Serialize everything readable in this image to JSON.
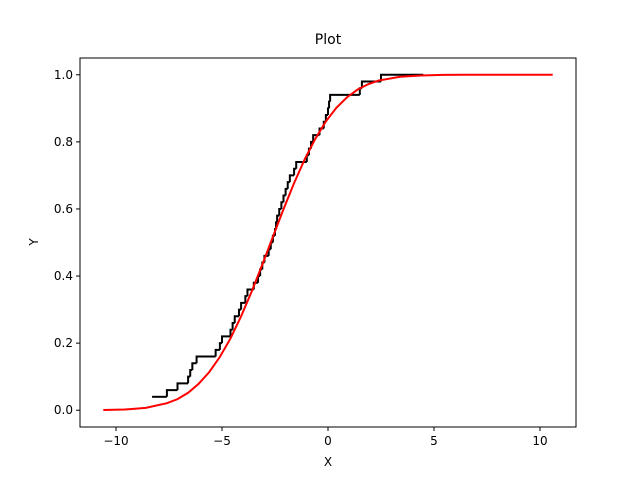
{
  "chart_data": {
    "type": "line",
    "title": "Plot",
    "xlabel": "X",
    "ylabel": "Y",
    "xlim": [
      -11.7,
      11.7
    ],
    "ylim": [
      -0.05,
      1.05
    ],
    "xticks": [
      {
        "value": -10,
        "label": "−10"
      },
      {
        "value": -5,
        "label": "−5"
      },
      0,
      5,
      10
    ],
    "yticks": [
      {
        "value": 0,
        "label": "0.0"
      },
      0.2,
      0.4,
      0.6,
      0.8,
      {
        "value": 1,
        "label": "1.0"
      }
    ],
    "series": [
      {
        "color": "#000000",
        "drawstyle": "steps-post",
        "x": [
          -8.3,
          -7.6,
          -7.1,
          -6.6,
          -6.5,
          -6.4,
          -6.2,
          -5.3,
          -5.1,
          -5.0,
          -4.6,
          -4.5,
          -4.4,
          -4.2,
          -4.1,
          -3.9,
          -3.8,
          -3.5,
          -3.3,
          -3.2,
          -3.1,
          -3.0,
          -2.8,
          -2.7,
          -2.6,
          -2.5,
          -2.45,
          -2.4,
          -2.3,
          -2.2,
          -2.1,
          -2.0,
          -1.9,
          -1.8,
          -1.6,
          -1.5,
          -1.0,
          -0.9,
          -0.8,
          -0.7,
          -0.4,
          -0.2,
          -0.1,
          0.0,
          0.05,
          0.1,
          1.5,
          1.6,
          2.5,
          4.5
        ],
        "values": [
          0.04,
          0.06,
          0.08,
          0.1,
          0.12,
          0.14,
          0.16,
          0.18,
          0.2,
          0.22,
          0.24,
          0.26,
          0.28,
          0.3,
          0.32,
          0.34,
          0.36,
          0.38,
          0.4,
          0.42,
          0.44,
          0.46,
          0.48,
          0.5,
          0.52,
          0.54,
          0.56,
          0.58,
          0.6,
          0.62,
          0.64,
          0.66,
          0.68,
          0.7,
          0.72,
          0.74,
          0.76,
          0.78,
          0.8,
          0.82,
          0.84,
          0.86,
          0.88,
          0.9,
          0.92,
          0.94,
          0.96,
          0.98,
          1.0,
          1.0
        ]
      },
      {
        "color": "#ff0000",
        "drawstyle": "default",
        "x": [
          -10.6,
          -9.6,
          -8.6,
          -7.6,
          -7.1,
          -6.6,
          -6.1,
          -5.6,
          -5.1,
          -4.6,
          -4.1,
          -3.6,
          -3.1,
          -2.6,
          -2.1,
          -1.6,
          -1.1,
          -0.6,
          -0.1,
          0.4,
          0.9,
          1.4,
          1.9,
          2.4,
          3.4,
          4.4,
          5.4,
          6.4,
          7.4,
          8.4,
          9.4,
          10.6
        ],
        "values": [
          0.0005,
          0.002,
          0.007,
          0.021,
          0.033,
          0.052,
          0.079,
          0.114,
          0.159,
          0.214,
          0.28,
          0.354,
          0.434,
          0.517,
          0.599,
          0.677,
          0.748,
          0.809,
          0.861,
          0.902,
          0.933,
          0.956,
          0.972,
          0.983,
          0.994,
          0.998,
          0.9996,
          0.9999,
          1.0,
          1.0,
          1.0,
          1.0
        ]
      }
    ]
  }
}
